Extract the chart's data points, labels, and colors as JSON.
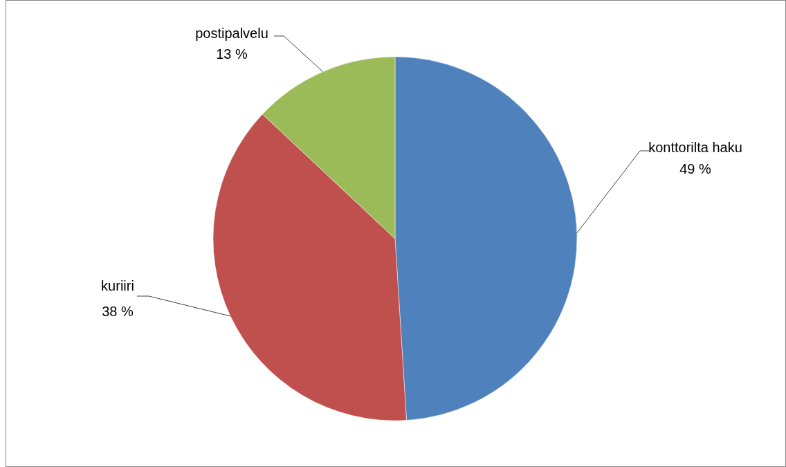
{
  "chart_data": {
    "type": "pie",
    "categories": [
      "konttorilta haku",
      "kuriiri",
      "postipalvelu"
    ],
    "values": [
      49,
      38,
      13
    ],
    "colors": [
      "#4f81bd",
      "#c0504d",
      "#9bbb59"
    ],
    "value_labels": [
      "49 %",
      "38 %",
      "13 %"
    ]
  }
}
